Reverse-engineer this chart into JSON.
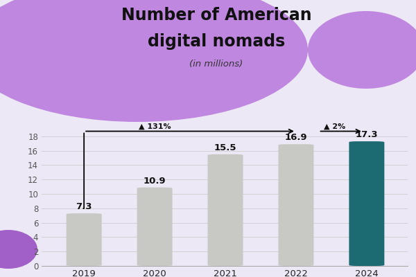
{
  "title_line1": "Number of American",
  "title_line2": "digital nomads",
  "subtitle": "(in millions)",
  "years": [
    "2019",
    "2020",
    "2021",
    "2022",
    "2024"
  ],
  "values": [
    7.3,
    10.9,
    15.5,
    16.9,
    17.3
  ],
  "bar_colors": [
    "#c8c9c4",
    "#c8c9c4",
    "#c8c9c4",
    "#c8c9c4",
    "#1d6b72"
  ],
  "highlight_color": "#1d6b72",
  "default_color": "#c8c9c4",
  "bg_color": "#ede8f5",
  "plot_bg_color": "#ede8f5",
  "title_color": "#111111",
  "purple_main": "#bf87e0",
  "purple_dark": "#a060c8",
  "ylim": [
    0,
    20
  ],
  "yticks": [
    0,
    2,
    4,
    6,
    8,
    10,
    12,
    14,
    16,
    18
  ],
  "annotation_131": "▲ 131%",
  "annotation_2": "▲ 2%",
  "figsize": [
    6.0,
    4.0
  ],
  "dpi": 100
}
